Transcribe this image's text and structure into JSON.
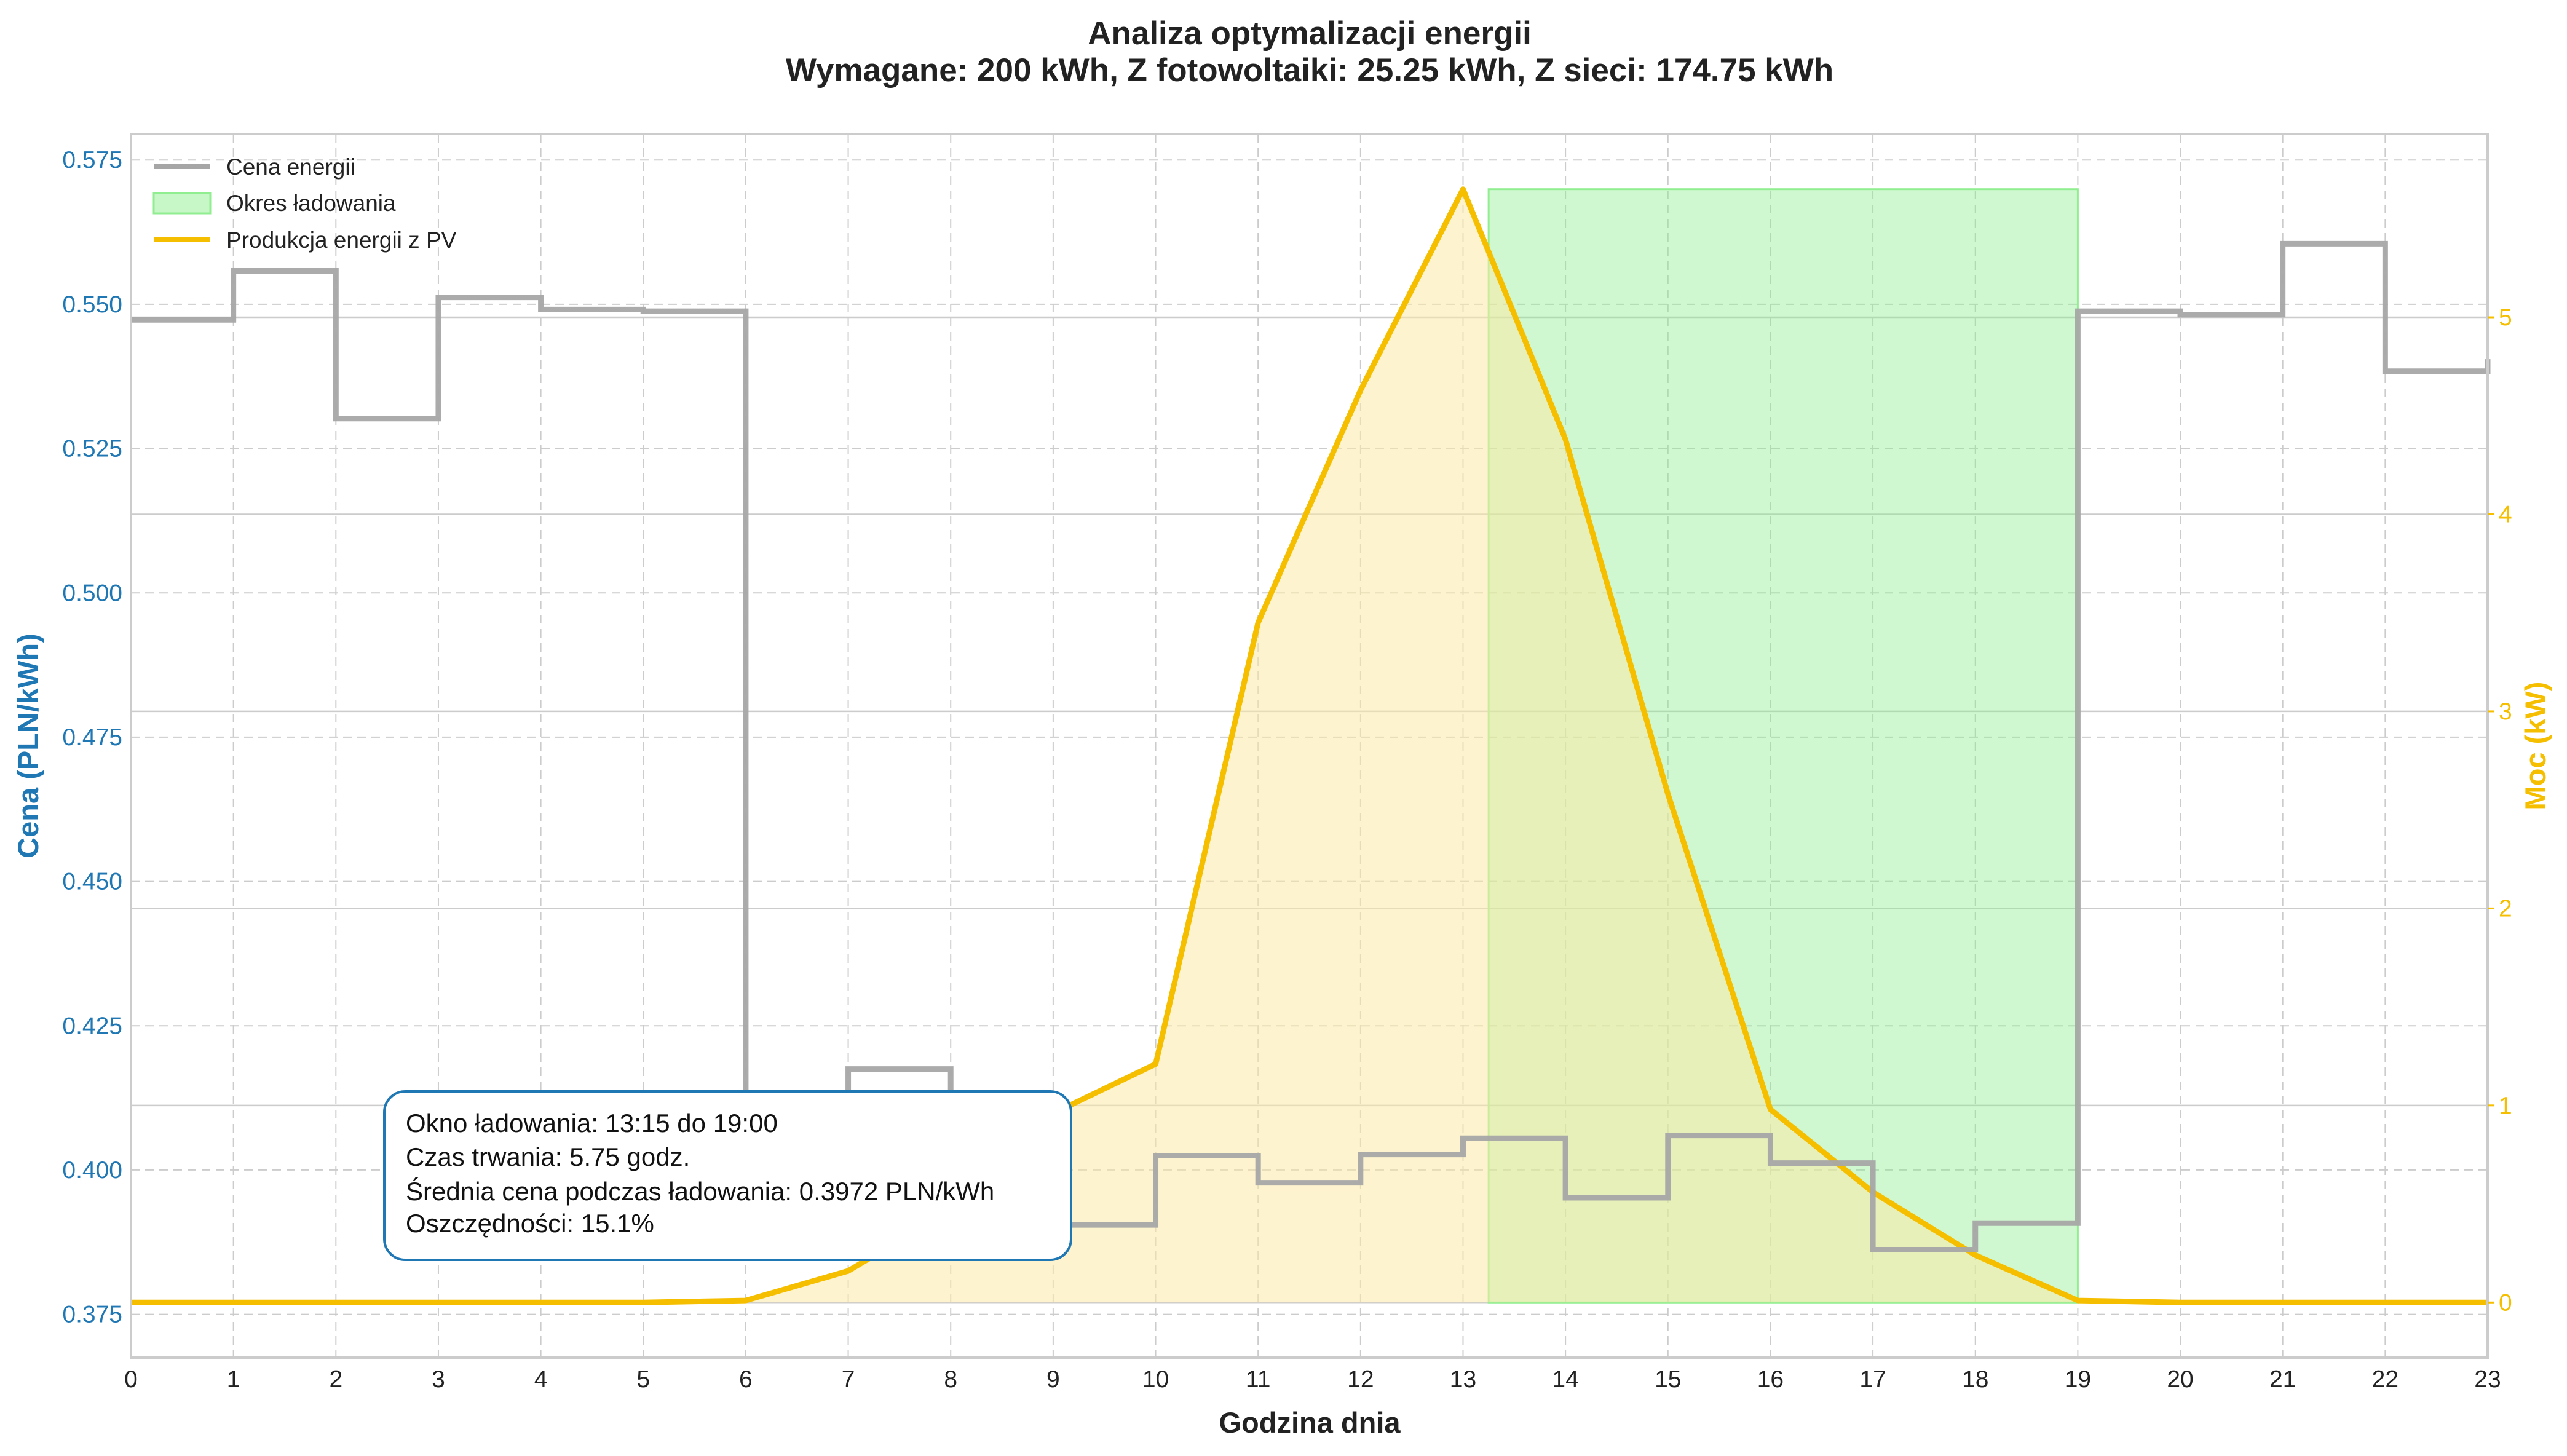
{
  "chart_data": {
    "type": "line",
    "title_line1": "Analiza optymalizacji energii",
    "title_line2": "Wymagane: 200 kWh, Z fotowoltaiki: 25.25 kWh, Z sieci: 174.75 kWh",
    "xlabel": "Godzina dnia",
    "ylabel_left": "Cena (PLN/kWh)",
    "ylabel_right": "Moc (kW)",
    "xlim": [
      0,
      23
    ],
    "ylim_left": [
      0.3675,
      0.5795
    ],
    "ylim_right": [
      -0.28,
      5.93
    ],
    "x_ticks": [
      "0",
      "1",
      "2",
      "3",
      "4",
      "5",
      "6",
      "7",
      "8",
      "9",
      "10",
      "11",
      "12",
      "13",
      "14",
      "15",
      "16",
      "17",
      "18",
      "19",
      "20",
      "21",
      "22",
      "23"
    ],
    "y_left_ticks": [
      "0.375",
      "0.400",
      "0.425",
      "0.450",
      "0.475",
      "0.500",
      "0.525",
      "0.550",
      "0.575"
    ],
    "y_right_ticks": [
      "0",
      "1",
      "2",
      "3",
      "4",
      "5"
    ],
    "grid": true,
    "legend_position": "top-left",
    "legend": [
      {
        "label": "Cena energii",
        "kind": "line",
        "color": "#a6a6a6"
      },
      {
        "label": "Okres ładowania",
        "kind": "patch",
        "color": "#90ee90"
      },
      {
        "label": "Produkcja energii z PV",
        "kind": "line",
        "color": "#f5bf00"
      }
    ],
    "series": [
      {
        "name": "Cena energii",
        "axis": "left",
        "style": "step-post",
        "color": "#a6a6a6",
        "x": [
          0,
          1,
          2,
          3,
          4,
          5,
          6,
          7,
          8,
          9,
          10,
          11,
          12,
          13,
          14,
          15,
          16,
          17,
          18,
          19,
          20,
          21,
          22,
          23
        ],
        "values": [
          0.5473,
          0.5558,
          0.5302,
          0.5512,
          0.5491,
          0.5488,
          0.4065,
          0.4175,
          0.402,
          0.3905,
          0.4025,
          0.3978,
          0.4027,
          0.4055,
          0.3952,
          0.406,
          0.4012,
          0.3862,
          0.3908,
          0.5488,
          0.5482,
          0.5605,
          0.5384,
          0.5405
        ]
      },
      {
        "name": "Produkcja energii z PV",
        "axis": "right",
        "style": "line-filled",
        "color": "#f5bf00",
        "x": [
          0,
          1,
          2,
          3,
          4,
          5,
          6,
          7,
          8,
          9,
          10,
          11,
          12,
          13,
          14,
          15,
          16,
          17,
          18,
          19,
          20,
          21,
          22,
          23
        ],
        "values": [
          0,
          0,
          0,
          0,
          0,
          0,
          0.01,
          0.16,
          0.47,
          0.96,
          1.21,
          3.45,
          4.63,
          5.65,
          4.38,
          2.58,
          0.98,
          0.56,
          0.24,
          0.01,
          0,
          0,
          0,
          0
        ]
      }
    ],
    "charging_window": {
      "start": 13.25,
      "end": 19.0,
      "label": "Okres ładowania",
      "color": "#90ee90",
      "top": 5.65
    },
    "annotation": {
      "lines": [
        "Okno ładowania: 13:15 do 19:00",
        "Czas trwania: 5.75 godz.",
        "Średnia cena podczas ładowania: 0.3972 PLN/kWh",
        "Oszczędności: 15.1%"
      ],
      "border_color": "#1f77b4"
    },
    "colors": {
      "left_axis": "#1f77b4",
      "right_axis": "#f5bf00",
      "pv_fill": "#fbe9a6",
      "grid": "#cccccc",
      "frame": "#cccccc"
    }
  }
}
